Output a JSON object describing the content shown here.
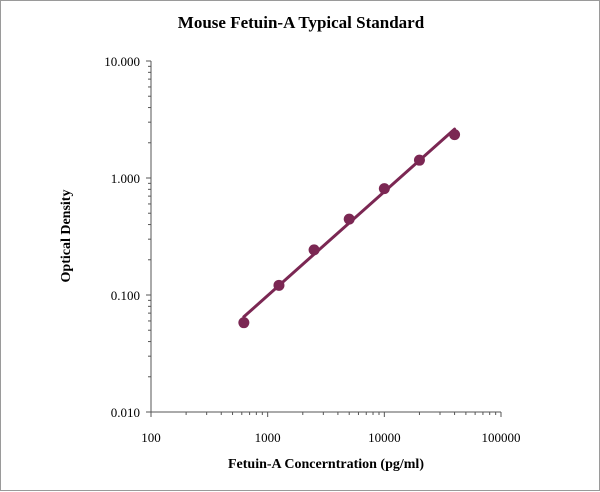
{
  "chart_data": {
    "type": "scatter",
    "title": "Mouse Fetuin-A Typical Standard",
    "xlabel": "Fetuin-A Concerntration (pg/ml)",
    "ylabel": "Optical Density",
    "x_scale": "log",
    "y_scale": "log",
    "xlim": [
      100,
      100000
    ],
    "ylim": [
      0.01,
      10
    ],
    "x_ticks": [
      {
        "value": 100,
        "label": "100"
      },
      {
        "value": 1000,
        "label": "1000"
      },
      {
        "value": 10000,
        "label": "10000"
      },
      {
        "value": 100000,
        "label": "100000"
      }
    ],
    "y_ticks": [
      {
        "value": 10,
        "label": "10.000"
      },
      {
        "value": 1,
        "label": "1.000"
      },
      {
        "value": 0.1,
        "label": "0.100"
      },
      {
        "value": 0.01,
        "label": "0.010"
      }
    ],
    "series": [
      {
        "x": [
          625,
          1250,
          2500,
          5000,
          10000,
          20000,
          40000
        ],
        "y": [
          0.058,
          0.121,
          0.243,
          0.445,
          0.812,
          1.42,
          2.35
        ],
        "trendline": "power",
        "color": "#7b2753"
      }
    ],
    "grid": false,
    "legend": "none"
  }
}
